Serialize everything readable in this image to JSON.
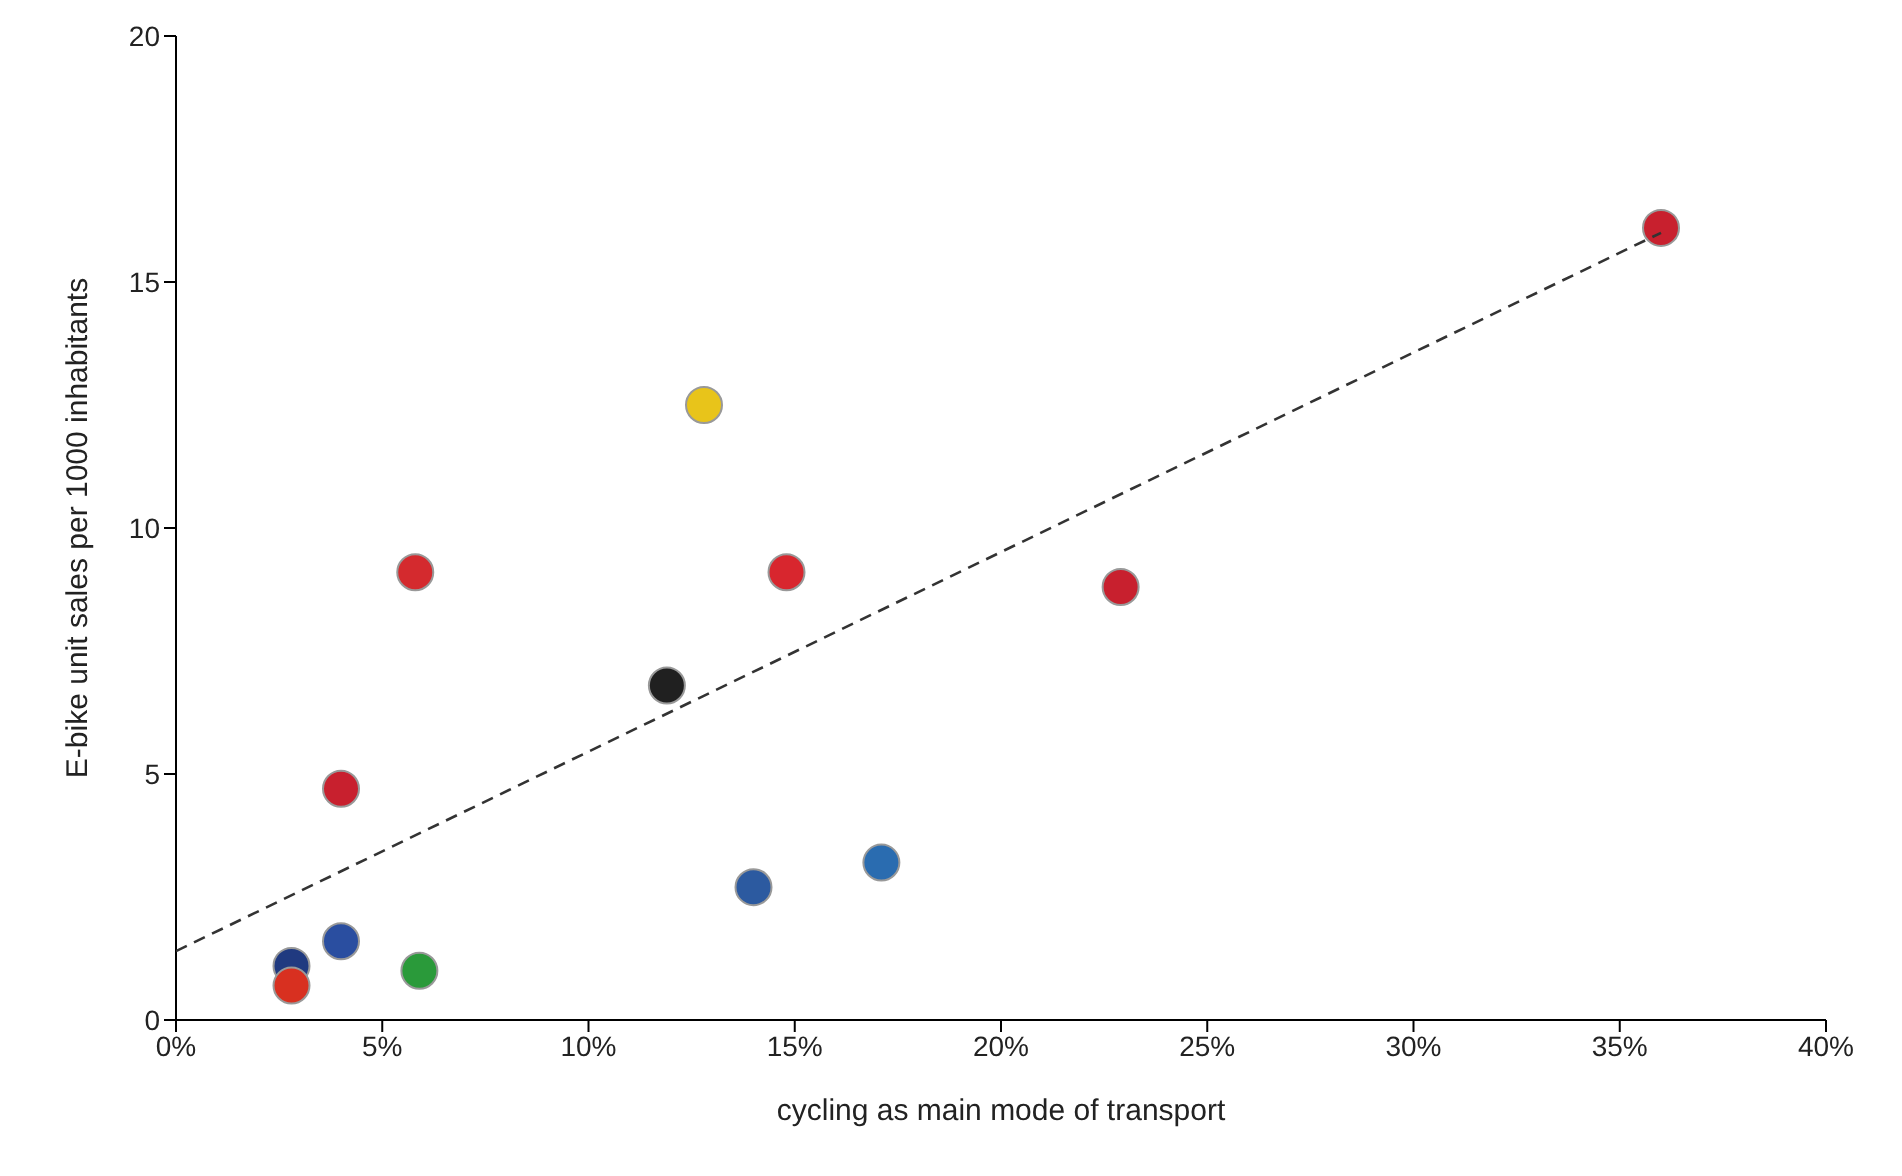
{
  "chart_data": {
    "type": "scatter",
    "xlabel": "cycling as main mode of transport",
    "ylabel": "E-bike unit sales per 1000 inhabitants",
    "xlim": [
      0,
      40
    ],
    "xticks": [
      {
        "value": 0,
        "label": "0%"
      },
      {
        "value": 5,
        "label": "5%"
      },
      {
        "value": 10,
        "label": "10%"
      },
      {
        "value": 15,
        "label": "15%"
      },
      {
        "value": 20,
        "label": "20%"
      },
      {
        "value": 25,
        "label": "25%"
      },
      {
        "value": 30,
        "label": "30%"
      },
      {
        "value": 35,
        "label": "35%"
      },
      {
        "value": 40,
        "label": "40%"
      }
    ],
    "ylim": [
      0,
      20
    ],
    "yticks": [
      0,
      5,
      10,
      15,
      20
    ],
    "grid": false,
    "legend": false,
    "series": [
      {
        "marker": "circle",
        "x": [
          36,
          12.8,
          5.8,
          14.8,
          22.9,
          11.9,
          4.0,
          17.1,
          14.0,
          4.0,
          5.9,
          2.8,
          2.8
        ],
        "values": [
          16.1,
          12.5,
          9.1,
          9.1,
          8.8,
          6.8,
          4.7,
          3.2,
          2.7,
          1.6,
          1.0,
          1.1,
          0.7
        ],
        "colors": [
          "#c8202e",
          "#e8c41a",
          "#d42a2e",
          "#d8262e",
          "#c8202e",
          "#202020",
          "#c8202e",
          "#2a6cb0",
          "#2c5aa0",
          "#2a4ea0",
          "#2a9a3a",
          "#203a80",
          "#d83020"
        ]
      },
      {
        "type": "line",
        "x": [
          0,
          36
        ],
        "values": [
          1.4,
          16
        ],
        "color": "#333333",
        "line_style": "dashed"
      }
    ]
  }
}
